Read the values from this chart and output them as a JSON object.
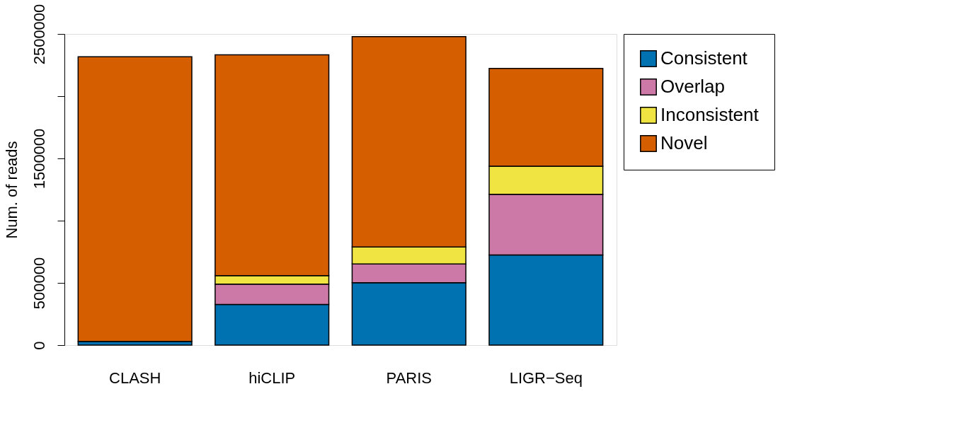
{
  "chart_data": {
    "type": "bar",
    "stacked": true,
    "ylabel": "Num. of reads",
    "categories": [
      "CLASH",
      "hiCLIP",
      "PARIS",
      "LIGR−Seq"
    ],
    "series": [
      {
        "name": "Consistent",
        "color": "#0072b2",
        "values": [
          30000,
          327000,
          501000,
          724000
        ]
      },
      {
        "name": "Overlap",
        "color": "#cc79a7",
        "values": [
          null,
          163000,
          151000,
          487000
        ]
      },
      {
        "name": "Inconsistent",
        "color": "#f0e442",
        "values": [
          null,
          68000,
          136000,
          226000
        ]
      },
      {
        "name": "Novel",
        "color": "#d55e00",
        "values": [
          2287000,
          1775000,
          1691000,
          786000
        ]
      }
    ],
    "ylim": [
      0,
      2500000
    ],
    "yticks": [
      0,
      500000,
      {
        "value": 1000000,
        "label": null
      },
      1500000,
      {
        "value": 2000000,
        "label": null
      },
      2500000
    ],
    "grid": false,
    "legend": "right"
  }
}
